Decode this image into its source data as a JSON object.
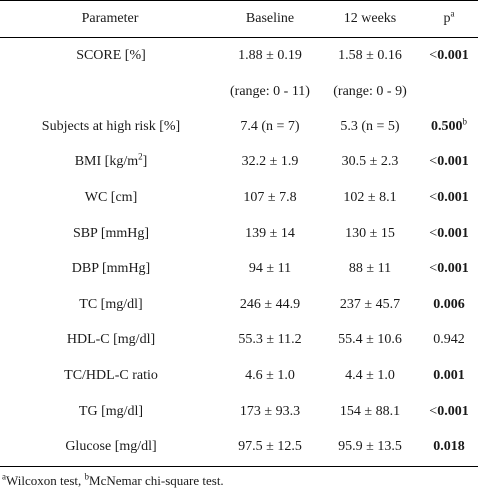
{
  "table": {
    "headers": {
      "parameter": "Parameter",
      "baseline": "Baseline",
      "weeks12": "12 weeks",
      "p": "p",
      "p_sup": "a"
    },
    "rows": [
      {
        "param": "SCORE [%]",
        "baseline": "1.88 ± 0.19",
        "week12": "1.58 ± 0.16",
        "p": "0.001",
        "p_prefix": "<",
        "p_sup": ""
      },
      {
        "param": "",
        "baseline": "(range: 0 - 11)",
        "week12": "(range: 0 - 9)",
        "p": "",
        "p_prefix": "",
        "p_sup": ""
      },
      {
        "param": "Subjects at high risk [%]",
        "baseline": "7.4 (n = 7)",
        "week12": "5.3 (n = 5)",
        "p": "0.500",
        "p_prefix": "",
        "p_sup": "b"
      },
      {
        "param": "BMI [kg/m",
        "param_sup": "2",
        "param_suffix": "]",
        "baseline": "32.2 ± 1.9",
        "week12": "30.5 ± 2.3",
        "p": "0.001",
        "p_prefix": "<",
        "p_sup": ""
      },
      {
        "param": "WC [cm]",
        "baseline": "107 ± 7.8",
        "week12": "102 ± 8.1",
        "p": "0.001",
        "p_prefix": "<",
        "p_sup": ""
      },
      {
        "param": "SBP [mmHg]",
        "baseline": "139 ± 14",
        "week12": "130 ± 15",
        "p": "0.001",
        "p_prefix": "<",
        "p_sup": ""
      },
      {
        "param": "DBP [mmHg]",
        "baseline": "94 ± 11",
        "week12": "88 ± 11",
        "p": "0.001",
        "p_prefix": "<",
        "p_sup": ""
      },
      {
        "param": "TC [mg/dl]",
        "baseline": "246 ± 44.9",
        "week12": "237 ± 45.7",
        "p": "0.006",
        "p_prefix": "",
        "p_sup": ""
      },
      {
        "param": "HDL-C [mg/dl]",
        "baseline": "55.3 ± 11.2",
        "week12": "55.4 ± 10.6",
        "p": "0.942",
        "p_prefix": "",
        "p_sup": ""
      },
      {
        "param": "TC/HDL-C ratio",
        "baseline": "4.6 ± 1.0",
        "week12": "4.4 ± 1.0",
        "p": "0.001",
        "p_prefix": "",
        "p_sup": ""
      },
      {
        "param": "TG [mg/dl]",
        "baseline": "173 ± 93.3",
        "week12": "154 ± 88.1",
        "p": "0.001",
        "p_prefix": "<",
        "p_sup": ""
      },
      {
        "param": "Glucose [mg/dl]",
        "baseline": "97.5 ± 12.5",
        "week12": "95.9 ± 13.5",
        "p": "0.018",
        "p_prefix": "",
        "p_sup": ""
      }
    ],
    "bold_p_rows": [
      true,
      false,
      true,
      true,
      true,
      true,
      true,
      true,
      false,
      true,
      true,
      true
    ]
  },
  "footnote": {
    "a_sup": "a",
    "a_text": "Wilcoxon test, ",
    "b_sup": "b",
    "b_text": "McNemar chi-square test."
  }
}
